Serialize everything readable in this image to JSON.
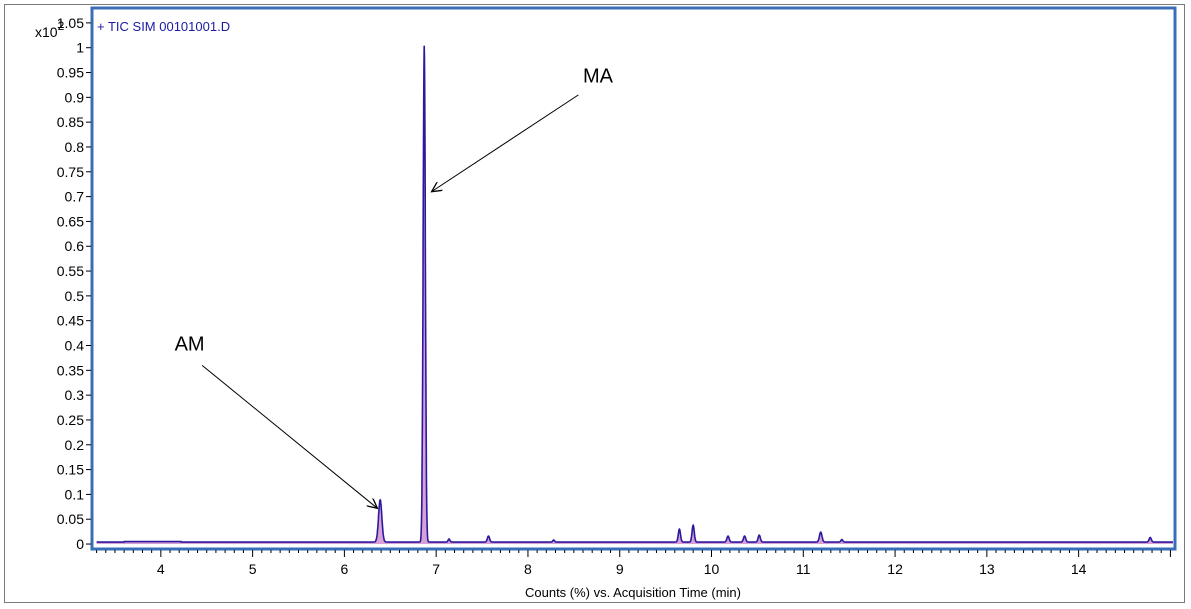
{
  "chart_data": {
    "type": "line",
    "title": "+ TIC SIM 00101001.D",
    "scale_label": "x10",
    "scale_exponent": "2",
    "xlabel": "Counts (%) vs. Acquisition Time (min)",
    "ylabel": "",
    "xlim": [
      3.25,
      15.05
    ],
    "ylim": [
      -0.01,
      1.08
    ],
    "x_ticks": [
      4,
      5,
      6,
      7,
      8,
      9,
      10,
      11,
      12,
      13,
      14
    ],
    "x_tick_labels": [
      "4",
      "5",
      "6",
      "7",
      "8",
      "9",
      "10",
      "11",
      "12",
      "13",
      "14"
    ],
    "y_ticks": [
      0,
      0.05,
      0.1,
      0.15,
      0.2,
      0.25,
      0.3,
      0.35,
      0.4,
      0.45,
      0.5,
      0.55,
      0.6,
      0.65,
      0.7,
      0.75,
      0.8,
      0.85,
      0.9,
      0.95,
      1,
      1.05
    ],
    "y_tick_labels": [
      "0",
      "0.05",
      "0.1",
      "0.15",
      "0.2",
      "0.25",
      "0.3",
      "0.35",
      "0.4",
      "0.45",
      "0.5",
      "0.55",
      "0.6",
      "0.65",
      "0.7",
      "0.75",
      "0.8",
      "0.85",
      "0.9",
      "0.95",
      "1",
      "1.05"
    ],
    "grid": false,
    "series": [
      {
        "color": "#2b1a9e",
        "fill": "#d9a0d8",
        "peaks": [
          {
            "x": 6.39,
            "y": 0.085,
            "w": 0.018
          },
          {
            "x": 6.87,
            "y": 1.0,
            "w": 0.012
          },
          {
            "x": 7.14,
            "y": 0.006,
            "w": 0.01
          },
          {
            "x": 7.57,
            "y": 0.012,
            "w": 0.012
          },
          {
            "x": 8.28,
            "y": 0.004,
            "w": 0.01
          },
          {
            "x": 9.65,
            "y": 0.026,
            "w": 0.012
          },
          {
            "x": 9.8,
            "y": 0.034,
            "w": 0.012
          },
          {
            "x": 10.18,
            "y": 0.012,
            "w": 0.012
          },
          {
            "x": 10.36,
            "y": 0.012,
            "w": 0.012
          },
          {
            "x": 10.52,
            "y": 0.014,
            "w": 0.012
          },
          {
            "x": 11.19,
            "y": 0.02,
            "w": 0.014
          },
          {
            "x": 11.42,
            "y": 0.005,
            "w": 0.01
          },
          {
            "x": 14.78,
            "y": 0.009,
            "w": 0.012
          }
        ],
        "baseline": 0.004,
        "raised_segment": {
          "x0": 3.6,
          "x1": 4.22,
          "y": 0.005
        }
      }
    ],
    "annotations": [
      {
        "text": "MA",
        "x_data": 8.6,
        "y_data": 0.93,
        "arrow_from": [
          8.55,
          0.905
        ],
        "arrow_to": [
          6.95,
          0.71
        ]
      },
      {
        "text": "AM",
        "x_data": 4.15,
        "y_data": 0.39,
        "arrow_from": [
          4.45,
          0.36
        ],
        "arrow_to": [
          6.36,
          0.072
        ]
      }
    ]
  },
  "colors": {
    "plot_border": "#3a6fb8",
    "title_color": "#1a1aa8",
    "line": "#2b1a9e",
    "fill": "#d9a0d8"
  }
}
